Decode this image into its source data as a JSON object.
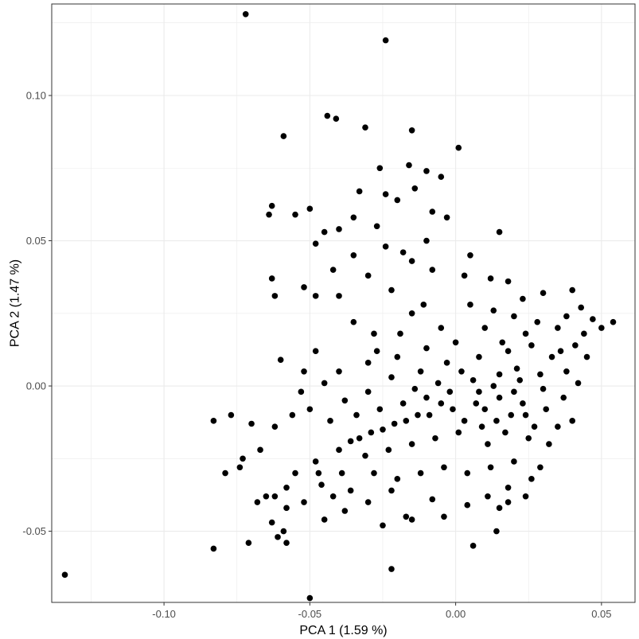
{
  "chart_data": {
    "type": "scatter",
    "xlabel": "PCA 1 (1.59 %)",
    "ylabel": "PCA 2 (1.47 %)",
    "xlim": [
      -0.1385,
      0.0615
    ],
    "ylim": [
      -0.0745,
      0.1315
    ],
    "xticks": [
      {
        "value": -0.1,
        "label": "-0.10"
      },
      {
        "value": -0.05,
        "label": "-0.05"
      },
      {
        "value": 0.0,
        "label": "0.00"
      },
      {
        "value": 0.05,
        "label": "0.05"
      }
    ],
    "yticks": [
      {
        "value": -0.05,
        "label": "-0.05"
      },
      {
        "value": 0.0,
        "label": "0.00"
      },
      {
        "value": 0.05,
        "label": "0.05"
      },
      {
        "value": 0.1,
        "label": "0.10"
      }
    ],
    "grid": true,
    "point_color": "#000000",
    "background": "#ffffff",
    "grid_color": "#ebebeb",
    "points": [
      {
        "x": -0.072,
        "y": 0.128
      },
      {
        "x": -0.024,
        "y": 0.119
      },
      {
        "x": -0.044,
        "y": 0.093
      },
      {
        "x": -0.041,
        "y": 0.092
      },
      {
        "x": -0.031,
        "y": 0.089
      },
      {
        "x": -0.015,
        "y": 0.088
      },
      {
        "x": -0.059,
        "y": 0.086
      },
      {
        "x": 0.001,
        "y": 0.082
      },
      {
        "x": -0.026,
        "y": 0.075
      },
      {
        "x": -0.016,
        "y": 0.076
      },
      {
        "x": -0.01,
        "y": 0.074
      },
      {
        "x": -0.005,
        "y": 0.072
      },
      {
        "x": -0.063,
        "y": 0.062
      },
      {
        "x": -0.064,
        "y": 0.059
      },
      {
        "x": -0.055,
        "y": 0.059
      },
      {
        "x": -0.05,
        "y": 0.061
      },
      {
        "x": -0.035,
        "y": 0.058
      },
      {
        "x": -0.02,
        "y": 0.064
      },
      {
        "x": -0.008,
        "y": 0.06
      },
      {
        "x": -0.003,
        "y": 0.058
      },
      {
        "x": -0.045,
        "y": 0.053
      },
      {
        "x": -0.04,
        "y": 0.054
      },
      {
        "x": -0.048,
        "y": 0.049
      },
      {
        "x": -0.018,
        "y": 0.046
      },
      {
        "x": -0.015,
        "y": 0.043
      },
      {
        "x": 0.005,
        "y": 0.045
      },
      {
        "x": 0.015,
        "y": 0.053
      },
      {
        "x": -0.052,
        "y": 0.034
      },
      {
        "x": -0.063,
        "y": 0.037
      },
      {
        "x": -0.062,
        "y": 0.031
      },
      {
        "x": -0.04,
        "y": 0.031
      },
      {
        "x": -0.03,
        "y": 0.038
      },
      {
        "x": -0.022,
        "y": 0.033
      },
      {
        "x": -0.008,
        "y": 0.04
      },
      {
        "x": 0.003,
        "y": 0.038
      },
      {
        "x": 0.012,
        "y": 0.037
      },
      {
        "x": 0.018,
        "y": 0.036
      },
      {
        "x": -0.048,
        "y": 0.031
      },
      {
        "x": -0.06,
        "y": 0.009
      },
      {
        "x": -0.048,
        "y": 0.012
      },
      {
        "x": -0.052,
        "y": 0.005
      },
      {
        "x": -0.053,
        "y": -0.002
      },
      {
        "x": -0.035,
        "y": 0.022
      },
      {
        "x": -0.028,
        "y": 0.018
      },
      {
        "x": -0.015,
        "y": 0.025
      },
      {
        "x": -0.005,
        "y": 0.02
      },
      {
        "x": 0.005,
        "y": 0.028
      },
      {
        "x": 0.013,
        "y": 0.026
      },
      {
        "x": 0.023,
        "y": 0.03
      },
      {
        "x": 0.03,
        "y": 0.032
      },
      {
        "x": 0.04,
        "y": 0.033
      },
      {
        "x": 0.043,
        "y": 0.027
      },
      {
        "x": 0.047,
        "y": 0.023
      },
      {
        "x": 0.054,
        "y": 0.022
      },
      {
        "x": 0.05,
        "y": 0.02
      },
      {
        "x": 0.038,
        "y": 0.024
      },
      {
        "x": 0.035,
        "y": 0.02
      },
      {
        "x": 0.041,
        "y": 0.014
      },
      {
        "x": 0.045,
        "y": 0.01
      },
      {
        "x": 0.028,
        "y": 0.022
      },
      {
        "x": 0.02,
        "y": 0.024
      },
      {
        "x": 0.01,
        "y": 0.02
      },
      {
        "x": 0.0,
        "y": 0.015
      },
      {
        "x": -0.01,
        "y": 0.013
      },
      {
        "x": -0.02,
        "y": 0.01
      },
      {
        "x": -0.03,
        "y": 0.008
      },
      {
        "x": -0.04,
        "y": 0.005
      },
      {
        "x": -0.045,
        "y": 0.001
      },
      {
        "x": -0.038,
        "y": -0.005
      },
      {
        "x": -0.03,
        "y": -0.002
      },
      {
        "x": -0.022,
        "y": 0.003
      },
      {
        "x": -0.012,
        "y": 0.005
      },
      {
        "x": -0.003,
        "y": 0.008
      },
      {
        "x": 0.008,
        "y": 0.01
      },
      {
        "x": 0.018,
        "y": 0.012
      },
      {
        "x": 0.026,
        "y": 0.014
      },
      {
        "x": 0.033,
        "y": 0.01
      },
      {
        "x": 0.038,
        "y": 0.005
      },
      {
        "x": 0.042,
        "y": 0.001
      },
      {
        "x": 0.037,
        "y": -0.004
      },
      {
        "x": 0.03,
        "y": -0.001
      },
      {
        "x": 0.022,
        "y": 0.002
      },
      {
        "x": 0.015,
        "y": 0.004
      },
      {
        "x": 0.006,
        "y": 0.002
      },
      {
        "x": -0.002,
        "y": -0.002
      },
      {
        "x": -0.01,
        "y": -0.004
      },
      {
        "x": -0.018,
        "y": -0.006
      },
      {
        "x": -0.026,
        "y": -0.008
      },
      {
        "x": -0.034,
        "y": -0.01
      },
      {
        "x": -0.043,
        "y": -0.012
      },
      {
        "x": -0.05,
        "y": -0.008
      },
      {
        "x": -0.056,
        "y": -0.01
      },
      {
        "x": -0.062,
        "y": -0.014
      },
      {
        "x": -0.083,
        "y": -0.012
      },
      {
        "x": -0.077,
        "y": -0.01
      },
      {
        "x": -0.07,
        "y": -0.013
      },
      {
        "x": -0.067,
        "y": -0.022
      },
      {
        "x": -0.073,
        "y": -0.025
      },
      {
        "x": -0.079,
        "y": -0.03
      },
      {
        "x": -0.074,
        "y": -0.028
      },
      {
        "x": -0.068,
        "y": -0.04
      },
      {
        "x": -0.062,
        "y": -0.038
      },
      {
        "x": -0.058,
        "y": -0.035
      },
      {
        "x": -0.055,
        "y": -0.03
      },
      {
        "x": -0.048,
        "y": -0.026
      },
      {
        "x": -0.04,
        "y": -0.022
      },
      {
        "x": -0.033,
        "y": -0.018
      },
      {
        "x": -0.025,
        "y": -0.015
      },
      {
        "x": -0.017,
        "y": -0.012
      },
      {
        "x": -0.009,
        "y": -0.01
      },
      {
        "x": -0.001,
        "y": -0.008
      },
      {
        "x": 0.007,
        "y": -0.006
      },
      {
        "x": 0.015,
        "y": -0.004
      },
      {
        "x": 0.023,
        "y": -0.006
      },
      {
        "x": 0.031,
        "y": -0.008
      },
      {
        "x": 0.035,
        "y": -0.014
      },
      {
        "x": 0.04,
        "y": -0.012
      },
      {
        "x": 0.032,
        "y": -0.02
      },
      {
        "x": 0.025,
        "y": -0.018
      },
      {
        "x": 0.017,
        "y": -0.016
      },
      {
        "x": 0.009,
        "y": -0.014
      },
      {
        "x": 0.001,
        "y": -0.016
      },
      {
        "x": -0.007,
        "y": -0.018
      },
      {
        "x": -0.015,
        "y": -0.02
      },
      {
        "x": -0.023,
        "y": -0.022
      },
      {
        "x": -0.031,
        "y": -0.024
      },
      {
        "x": -0.039,
        "y": -0.03
      },
      {
        "x": -0.046,
        "y": -0.034
      },
      {
        "x": -0.052,
        "y": -0.04
      },
      {
        "x": -0.058,
        "y": -0.042
      },
      {
        "x": -0.065,
        "y": -0.038
      },
      {
        "x": -0.063,
        "y": -0.047
      },
      {
        "x": -0.059,
        "y": -0.05
      },
      {
        "x": -0.058,
        "y": -0.054
      },
      {
        "x": -0.061,
        "y": -0.052
      },
      {
        "x": -0.071,
        "y": -0.054
      },
      {
        "x": -0.083,
        "y": -0.056
      },
      {
        "x": -0.134,
        "y": -0.065
      },
      {
        "x": -0.05,
        "y": -0.073
      },
      {
        "x": -0.022,
        "y": -0.063
      },
      {
        "x": 0.006,
        "y": -0.055
      },
      {
        "x": 0.014,
        "y": -0.05
      },
      {
        "x": -0.045,
        "y": -0.046
      },
      {
        "x": -0.038,
        "y": -0.043
      },
      {
        "x": -0.03,
        "y": -0.04
      },
      {
        "x": -0.022,
        "y": -0.036
      },
      {
        "x": -0.015,
        "y": -0.046
      },
      {
        "x": -0.008,
        "y": -0.039
      },
      {
        "x": -0.004,
        "y": -0.045
      },
      {
        "x": 0.004,
        "y": -0.041
      },
      {
        "x": 0.011,
        "y": -0.038
      },
      {
        "x": 0.018,
        "y": -0.035
      },
      {
        "x": 0.026,
        "y": -0.032
      },
      {
        "x": 0.029,
        "y": -0.028
      },
      {
        "x": 0.02,
        "y": -0.026
      },
      {
        "x": 0.012,
        "y": -0.028
      },
      {
        "x": 0.004,
        "y": -0.03
      },
      {
        "x": -0.004,
        "y": -0.028
      },
      {
        "x": -0.012,
        "y": -0.03
      },
      {
        "x": -0.02,
        "y": -0.032
      },
      {
        "x": -0.028,
        "y": -0.03
      },
      {
        "x": -0.036,
        "y": -0.036
      },
      {
        "x": -0.042,
        "y": -0.038
      },
      {
        "x": -0.047,
        "y": -0.03
      },
      {
        "x": -0.025,
        "y": -0.048
      },
      {
        "x": -0.017,
        "y": -0.045
      },
      {
        "x": 0.015,
        "y": -0.042
      },
      {
        "x": 0.018,
        "y": -0.04
      },
      {
        "x": 0.024,
        "y": -0.038
      },
      {
        "x": 0.011,
        "y": -0.02
      },
      {
        "x": 0.019,
        "y": -0.01
      },
      {
        "x": 0.027,
        "y": -0.014
      },
      {
        "x": 0.013,
        "y": 0.0
      },
      {
        "x": 0.021,
        "y": 0.006
      },
      {
        "x": 0.029,
        "y": 0.004
      },
      {
        "x": 0.036,
        "y": 0.012
      },
      {
        "x": 0.044,
        "y": 0.018
      },
      {
        "x": 0.024,
        "y": 0.018
      },
      {
        "x": 0.016,
        "y": 0.015
      },
      {
        "x": 0.002,
        "y": 0.005
      },
      {
        "x": -0.006,
        "y": 0.001
      },
      {
        "x": -0.014,
        "y": -0.001
      },
      {
        "x": 0.01,
        "y": -0.008
      },
      {
        "x": 0.014,
        "y": -0.012
      },
      {
        "x": 0.02,
        "y": -0.002
      },
      {
        "x": 0.024,
        "y": -0.01
      },
      {
        "x": 0.008,
        "y": -0.002
      },
      {
        "x": 0.003,
        "y": -0.012
      },
      {
        "x": -0.005,
        "y": -0.006
      },
      {
        "x": -0.013,
        "y": -0.01
      },
      {
        "x": -0.021,
        "y": -0.013
      },
      {
        "x": -0.029,
        "y": -0.016
      },
      {
        "x": -0.036,
        "y": -0.019
      },
      {
        "x": -0.027,
        "y": 0.012
      },
      {
        "x": -0.019,
        "y": 0.018
      },
      {
        "x": -0.011,
        "y": 0.028
      },
      {
        "x": -0.024,
        "y": 0.048
      },
      {
        "x": -0.01,
        "y": 0.05
      },
      {
        "x": -0.035,
        "y": 0.045
      },
      {
        "x": -0.042,
        "y": 0.04
      },
      {
        "x": -0.027,
        "y": 0.055
      },
      {
        "x": -0.033,
        "y": 0.067
      },
      {
        "x": -0.024,
        "y": 0.066
      },
      {
        "x": -0.014,
        "y": 0.068
      }
    ]
  }
}
